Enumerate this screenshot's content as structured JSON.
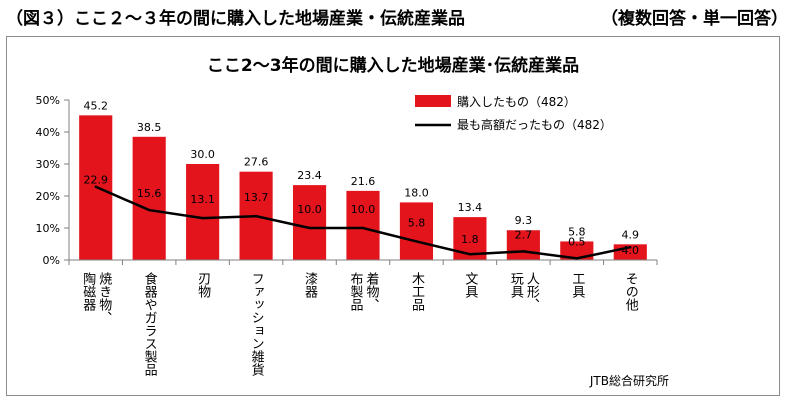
{
  "header": {
    "title": "（図３）ここ２～３年の間に購入した地場産業・伝統産業品",
    "note": "（複数回答・単一回答）"
  },
  "source": "JTB総合研究所",
  "colors": {
    "bar": "#e3141c",
    "line": "#000000",
    "axis": "#808080"
  },
  "chart_data": {
    "type": "bar",
    "title": "ここ2～3年の間に購入した地場産業･伝統産業品",
    "categories": [
      "焼き物、陶磁器",
      "食器やガラス製品",
      "刃物",
      "ファッション雑貨",
      "漆器",
      "着物、布製品",
      "木工品",
      "文具",
      "人形、玩具",
      "工具",
      "その他"
    ],
    "ylim": [
      0,
      50
    ],
    "yticks": [
      "0%",
      "10%",
      "20%",
      "30%",
      "40%",
      "50%"
    ],
    "legend_position": "top-right",
    "series": [
      {
        "name": "購入したもの（482）",
        "type": "bar",
        "values": [
          45.2,
          38.5,
          30.0,
          27.6,
          23.4,
          21.6,
          18.0,
          13.4,
          9.3,
          5.8,
          4.9
        ],
        "labels": [
          "45.2",
          "38.5",
          "30.0",
          "27.6",
          "23.4",
          "21.6",
          "18.0",
          "13.4",
          "9.3",
          "5.8",
          "4.9"
        ]
      },
      {
        "name": "最も高額だったもの（482）",
        "type": "line",
        "values": [
          22.9,
          15.6,
          13.1,
          13.7,
          10.0,
          10.0,
          5.8,
          1.8,
          2.7,
          0.5,
          4.0
        ],
        "labels": [
          "22.9",
          "15.6",
          "13.1",
          "13.7",
          "10.0",
          "10.0",
          "5.8",
          "1.8",
          "2.7",
          "0.5",
          "4.0"
        ]
      }
    ]
  }
}
